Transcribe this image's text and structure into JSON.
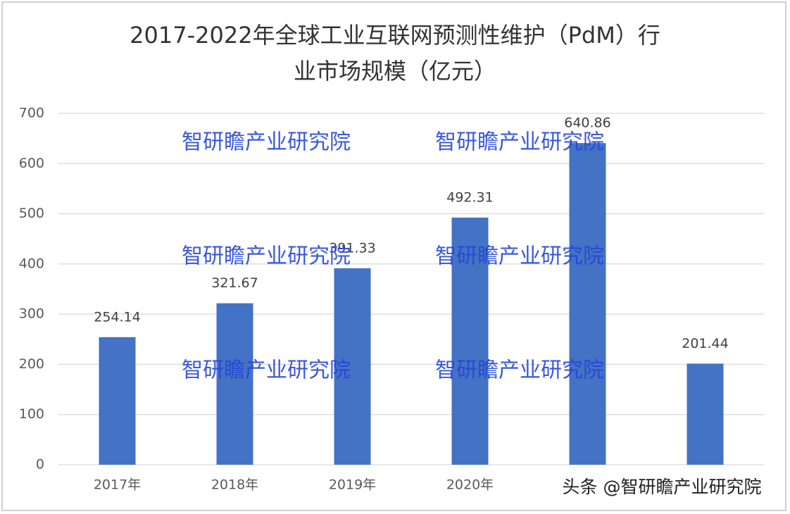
{
  "chart_data": {
    "type": "bar",
    "title": [
      "2017-2022年全球工业互联网预测性维护（PdM）行",
      "业市场规模（亿元）"
    ],
    "categories": [
      "2017年",
      "2018年",
      "2019年",
      "2020年",
      null,
      null
    ],
    "values": [
      254.14,
      321.67,
      391.33,
      492.31,
      640.86,
      201.44
    ],
    "color": "#4472c4",
    "ylim": [
      0,
      700
    ],
    "yticks": [
      0,
      100,
      200,
      300,
      400,
      500,
      600,
      700
    ],
    "grid": true
  },
  "watermarks": [
    "智研瞻产业研究院",
    "智研瞻产业研究院",
    "智研瞻产业研究院",
    "智研瞻产业研究院",
    "智研瞻产业研究院",
    "智研瞻产业研究院"
  ],
  "footer_watermark": "头条 @智研瞻产业研究院"
}
